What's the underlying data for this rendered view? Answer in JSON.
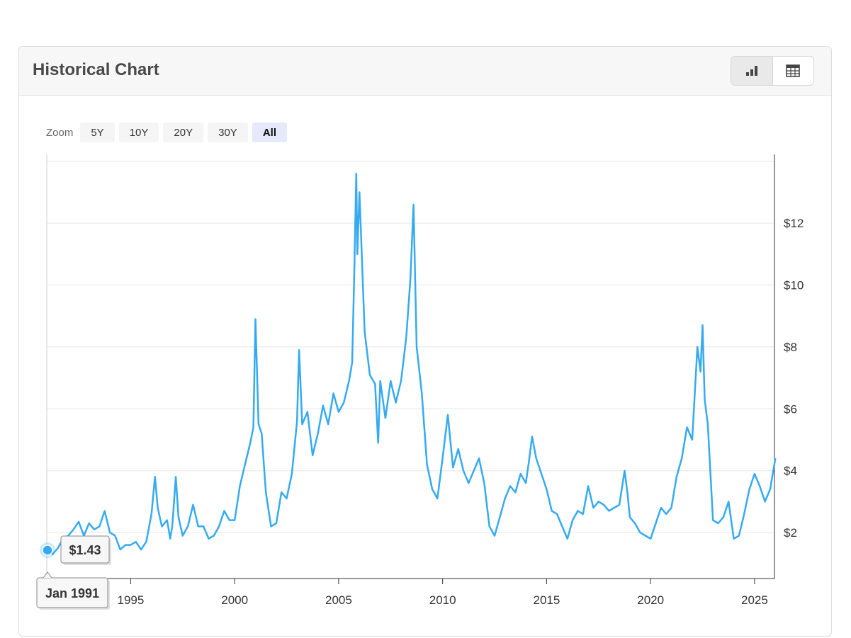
{
  "header": {
    "title": "Historical Chart"
  },
  "view_toggle": {
    "options": [
      "chart-icon",
      "table-icon"
    ],
    "active": "chart-icon"
  },
  "zoom": {
    "label": "Zoom",
    "options": [
      "5Y",
      "10Y",
      "20Y",
      "30Y",
      "All"
    ],
    "selected": "All"
  },
  "tooltip": {
    "value": "$1.43",
    "date": "Jan 1991"
  },
  "colors": {
    "line": "#35aaf2",
    "grid": "#e6e6e6",
    "axis": "#333333"
  },
  "chart_data": {
    "type": "line",
    "title": "",
    "xlabel": "",
    "ylabel": "",
    "x_ticks": [
      "1995",
      "2000",
      "2005",
      "2010",
      "2015",
      "2020",
      "2025"
    ],
    "y_ticks": [
      "$2",
      "$4",
      "$6",
      "$8",
      "$10",
      "$12"
    ],
    "ylim": [
      0.5,
      13.8
    ],
    "xlim": [
      1991.0,
      2026.0
    ],
    "y_axis_position": "right",
    "grid": true,
    "series": [
      {
        "x": [
          1991.0,
          1991.25,
          1991.5,
          1991.75,
          1992.0,
          1992.25,
          1992.5,
          1992.75,
          1993.0,
          1993.25,
          1993.5,
          1993.75,
          1994.0,
          1994.25,
          1994.5,
          1994.75,
          1995.0,
          1995.25,
          1995.5,
          1995.75,
          1996.0,
          1996.17,
          1996.3,
          1996.5,
          1996.75,
          1996.9,
          1997.0,
          1997.17,
          1997.3,
          1997.5,
          1997.75,
          1998.0,
          1998.25,
          1998.5,
          1998.75,
          1999.0,
          1999.25,
          1999.5,
          1999.75,
          2000.0,
          2000.25,
          2000.5,
          2000.75,
          2000.9,
          2001.0,
          2001.15,
          2001.3,
          2001.5,
          2001.75,
          2002.0,
          2002.25,
          2002.5,
          2002.75,
          2003.0,
          2003.1,
          2003.25,
          2003.5,
          2003.75,
          2004.0,
          2004.25,
          2004.5,
          2004.75,
          2005.0,
          2005.25,
          2005.5,
          2005.65,
          2005.75,
          2005.85,
          2005.9,
          2006.0,
          2006.25,
          2006.5,
          2006.75,
          2006.9,
          2007.0,
          2007.25,
          2007.5,
          2007.75,
          2008.0,
          2008.25,
          2008.45,
          2008.6,
          2008.75,
          2009.0,
          2009.25,
          2009.5,
          2009.75,
          2010.0,
          2010.25,
          2010.5,
          2010.75,
          2011.0,
          2011.25,
          2011.5,
          2011.75,
          2012.0,
          2012.25,
          2012.5,
          2012.75,
          2013.0,
          2013.25,
          2013.5,
          2013.75,
          2014.0,
          2014.15,
          2014.3,
          2014.5,
          2014.75,
          2015.0,
          2015.25,
          2015.5,
          2015.75,
          2016.0,
          2016.25,
          2016.5,
          2016.75,
          2017.0,
          2017.25,
          2017.5,
          2017.75,
          2018.0,
          2018.25,
          2018.5,
          2018.75,
          2018.9,
          2019.0,
          2019.25,
          2019.5,
          2019.75,
          2020.0,
          2020.25,
          2020.5,
          2020.75,
          2021.0,
          2021.25,
          2021.5,
          2021.75,
          2022.0,
          2022.1,
          2022.25,
          2022.4,
          2022.5,
          2022.6,
          2022.75,
          2023.0,
          2023.25,
          2023.5,
          2023.75,
          2024.0,
          2024.25,
          2024.5,
          2024.75,
          2025.0,
          2025.25,
          2025.5,
          2025.75,
          2026.0
        ],
        "y": [
          1.43,
          1.3,
          1.5,
          1.8,
          1.9,
          2.1,
          2.35,
          1.9,
          2.3,
          2.1,
          2.2,
          2.7,
          2.0,
          1.9,
          1.45,
          1.6,
          1.6,
          1.7,
          1.45,
          1.7,
          2.6,
          3.8,
          2.8,
          2.2,
          2.4,
          1.8,
          2.2,
          3.8,
          2.5,
          1.9,
          2.2,
          2.9,
          2.2,
          2.2,
          1.8,
          1.9,
          2.2,
          2.7,
          2.4,
          2.4,
          3.5,
          4.2,
          4.9,
          5.4,
          8.9,
          5.5,
          5.2,
          3.3,
          2.2,
          2.3,
          3.3,
          3.1,
          3.9,
          5.6,
          7.9,
          5.5,
          5.9,
          4.5,
          5.2,
          6.1,
          5.5,
          6.5,
          5.9,
          6.2,
          6.9,
          7.5,
          10.3,
          13.6,
          11.0,
          13.0,
          8.5,
          7.1,
          6.8,
          4.9,
          6.9,
          5.7,
          6.9,
          6.2,
          6.9,
          8.3,
          10.2,
          12.6,
          8.0,
          6.5,
          4.2,
          3.4,
          3.1,
          4.4,
          5.8,
          4.1,
          4.7,
          4.0,
          3.6,
          4.0,
          4.4,
          3.6,
          2.2,
          1.9,
          2.5,
          3.1,
          3.5,
          3.3,
          3.9,
          3.6,
          4.3,
          5.1,
          4.4,
          3.9,
          3.4,
          2.7,
          2.6,
          2.2,
          1.8,
          2.4,
          2.7,
          2.6,
          3.5,
          2.8,
          3.0,
          2.9,
          2.7,
          2.8,
          2.9,
          4.0,
          3.2,
          2.5,
          2.3,
          2.0,
          1.9,
          1.8,
          2.3,
          2.8,
          2.6,
          2.8,
          3.8,
          4.4,
          5.4,
          5.0,
          6.2,
          8.0,
          7.2,
          8.7,
          6.3,
          5.5,
          2.4,
          2.3,
          2.5,
          3.0,
          1.8,
          1.9,
          2.6,
          3.4,
          3.9,
          3.5,
          3.0,
          3.4,
          4.4
        ]
      }
    ]
  }
}
